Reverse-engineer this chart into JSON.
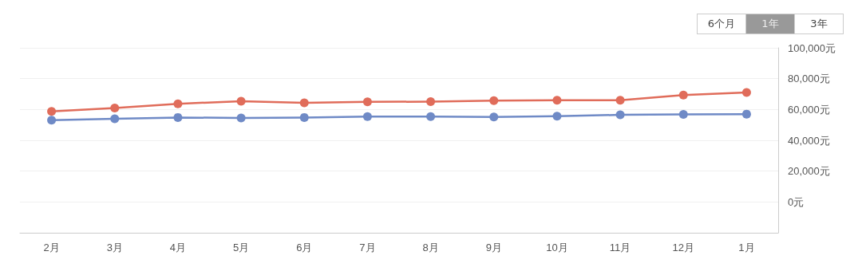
{
  "chart_data": {
    "type": "line",
    "categories": [
      "2月",
      "3月",
      "4月",
      "5月",
      "6月",
      "7月",
      "8月",
      "9月",
      "10月",
      "11月",
      "12月",
      "1月"
    ],
    "series": [
      {
        "color": "#e06c5a",
        "values": [
          58700,
          61000,
          63700,
          65400,
          64300,
          64900,
          65100,
          65700,
          66000,
          66000,
          69300,
          71000
        ]
      },
      {
        "color": "#6f8ac6",
        "values": [
          53100,
          54000,
          54800,
          54500,
          54800,
          55400,
          55400,
          55100,
          55700,
          56500,
          56800,
          57000
        ]
      }
    ],
    "ylim": [
      -20000,
      100000
    ],
    "yticks": [
      {
        "value": 0,
        "label": "0元"
      },
      {
        "value": 20000,
        "label": "20,000元"
      },
      {
        "value": 40000,
        "label": "40,000元"
      },
      {
        "value": 60000,
        "label": "60,000元"
      },
      {
        "value": 80000,
        "label": "80,000元"
      },
      {
        "value": 100000,
        "label": "100,000元"
      }
    ],
    "grid": "y",
    "marker": "circle",
    "line_style": "solid",
    "annotations": [
      "6个月",
      "1年",
      "3年"
    ]
  }
}
